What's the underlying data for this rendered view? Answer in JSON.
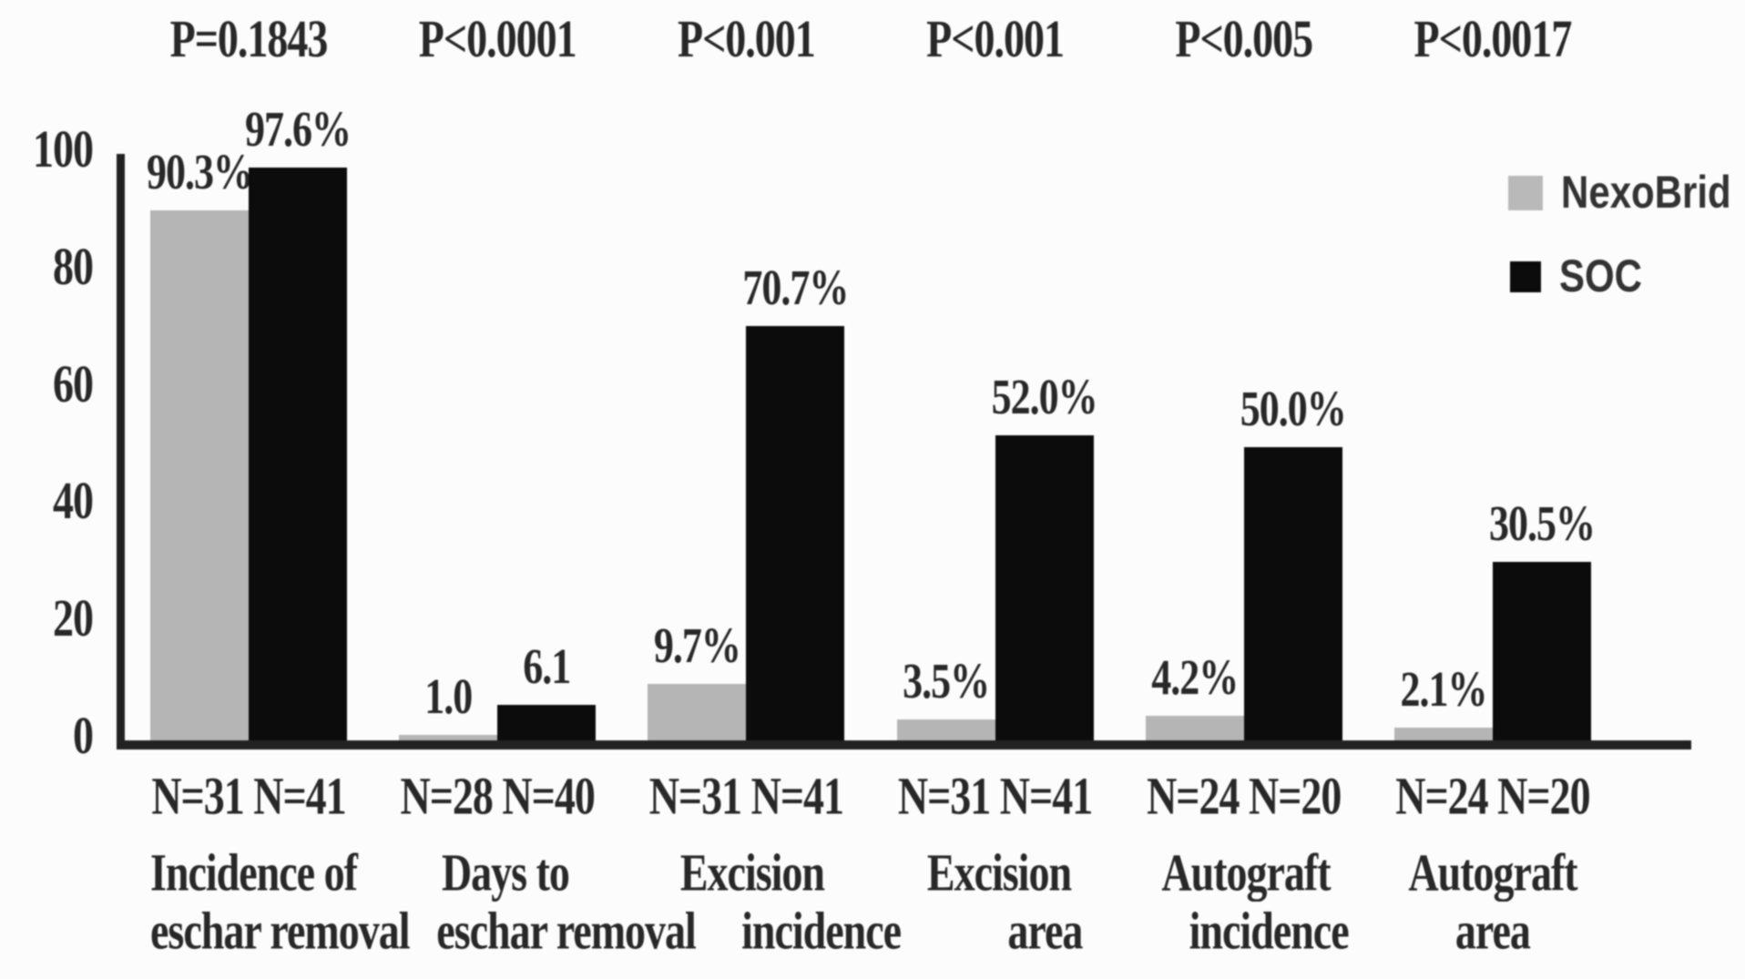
{
  "figure": {
    "background_color": "#fcfcfc",
    "text_color": "#282828",
    "axis_color": "#222222"
  },
  "chart_data": {
    "type": "bar",
    "title": "",
    "xlabel": "",
    "ylabel": "",
    "ylim": [
      0,
      100
    ],
    "yticks": [
      0,
      20,
      40,
      60,
      80,
      100
    ],
    "grid": false,
    "legend_position": "top-right",
    "legend": [
      {
        "name": "NexoBrid",
        "swatch_color": "#b9b9b9"
      },
      {
        "name": "SOC",
        "swatch_color": "#0c0c0c"
      }
    ],
    "categories": [
      "Incidence of eschar removal",
      "Days to eschar removal",
      "Excision incidence",
      "Excision area",
      "Autograft incidence",
      "Autograft area"
    ],
    "series": [
      {
        "name": "NexoBrid",
        "color": "#b5b5b5",
        "values": [
          90.3,
          1.0,
          9.7,
          3.5,
          4.2,
          2.1
        ]
      },
      {
        "name": "SOC",
        "color": "#0c0c0c",
        "values": [
          97.6,
          6.1,
          70.7,
          52.0,
          50.0,
          30.5
        ]
      }
    ],
    "groups": [
      {
        "p_value": "P=0.1843",
        "n_label": "N=31 N=41",
        "category_line1": "Incidence of",
        "category_line2": "eschar removal",
        "nexobrid": {
          "value": 90.3,
          "label": "90.3%"
        },
        "soc": {
          "value": 97.6,
          "label": "97.6%"
        }
      },
      {
        "p_value": "P<0.0001",
        "n_label": "N=28 N=40",
        "category_line1": "Days to",
        "category_line2": "eschar removal",
        "nexobrid": {
          "value": 1.0,
          "label": "1.0"
        },
        "soc": {
          "value": 6.1,
          "label": "6.1"
        }
      },
      {
        "p_value": "P<0.001",
        "n_label": "N=31 N=41",
        "category_line1": "Excision",
        "category_line2": "incidence",
        "nexobrid": {
          "value": 9.7,
          "label": "9.7%"
        },
        "soc": {
          "value": 70.7,
          "label": "70.7%"
        }
      },
      {
        "p_value": "P<0.001",
        "n_label": "N=31 N=41",
        "category_line1": "Excision",
        "category_line2": "area",
        "nexobrid": {
          "value": 3.5,
          "label": "3.5%"
        },
        "soc": {
          "value": 52.0,
          "label": "52.0%"
        }
      },
      {
        "p_value": "P<0.005",
        "n_label": "N=24 N=20",
        "category_line1": "Autograft",
        "category_line2": "incidence",
        "nexobrid": {
          "value": 4.2,
          "label": "4.2%"
        },
        "soc": {
          "value": 50.0,
          "label": "50.0%"
        }
      },
      {
        "p_value": "P<0.0017",
        "n_label": "N=24 N=20",
        "category_line1": "Autograft",
        "category_line2": "area",
        "nexobrid": {
          "value": 2.1,
          "label": "2.1%"
        },
        "soc": {
          "value": 30.5,
          "label": "30.5%"
        }
      }
    ]
  }
}
